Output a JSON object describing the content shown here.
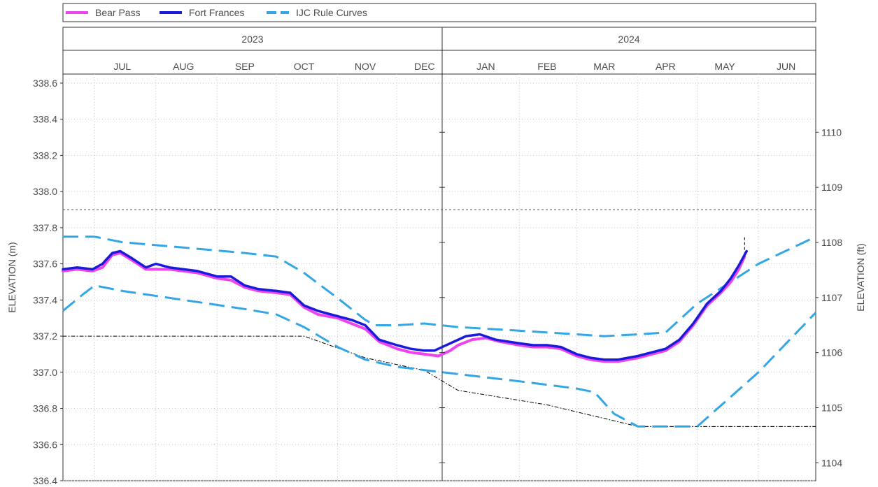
{
  "legend": {
    "items": [
      {
        "label": "Bear Pass",
        "color": "#ee44ee",
        "style": "solid"
      },
      {
        "label": "Fort Frances",
        "color": "#1a1adb",
        "style": "solid"
      },
      {
        "label": "IJC Rule Curves",
        "color": "#33a6e6",
        "style": "dashed"
      }
    ]
  },
  "panels": [
    {
      "year": "2023",
      "months": [
        "JUL",
        "AUG",
        "SEP",
        "OCT",
        "NOV",
        "DEC"
      ]
    },
    {
      "year": "2024",
      "months": [
        "JAN",
        "FEB",
        "MAR",
        "APR",
        "MAY",
        "JUN"
      ]
    }
  ],
  "axes": {
    "y_left_label": "ELEVATION (m)",
    "y_right_label": "ELEVATION (ft)",
    "y_left_ticks": [
      "336.4",
      "336.6",
      "336.8",
      "337.0",
      "337.2",
      "337.4",
      "337.6",
      "337.8",
      "338.0",
      "338.2",
      "338.4",
      "338.6"
    ],
    "y_right_ticks": [
      "1104",
      "1105",
      "1106",
      "1107",
      "1108",
      "1109",
      "1110"
    ]
  },
  "chart_data": {
    "type": "line",
    "x_unit": "date",
    "xlim": [
      "2023-06-15",
      "2024-06-30"
    ],
    "ylim": [
      336.4,
      338.65
    ],
    "y_left_unit": "m",
    "y_right_unit": "ft",
    "grid": true,
    "legend_position": "top",
    "series": [
      {
        "name": "Bear Pass",
        "color": "#ee44ee",
        "dash": false,
        "points": [
          [
            "2023-06-15",
            337.56
          ],
          [
            "2023-06-22",
            337.57
          ],
          [
            "2023-06-30",
            337.56
          ],
          [
            "2023-07-05",
            337.58
          ],
          [
            "2023-07-10",
            337.65
          ],
          [
            "2023-07-14",
            337.66
          ],
          [
            "2023-07-20",
            337.62
          ],
          [
            "2023-07-27",
            337.57
          ],
          [
            "2023-08-01",
            337.57
          ],
          [
            "2023-08-08",
            337.57
          ],
          [
            "2023-08-15",
            337.56
          ],
          [
            "2023-08-22",
            337.55
          ],
          [
            "2023-09-01",
            337.52
          ],
          [
            "2023-09-08",
            337.51
          ],
          [
            "2023-09-15",
            337.47
          ],
          [
            "2023-09-22",
            337.45
          ],
          [
            "2023-10-01",
            337.44
          ],
          [
            "2023-10-08",
            337.43
          ],
          [
            "2023-10-15",
            337.36
          ],
          [
            "2023-10-22",
            337.32
          ],
          [
            "2023-11-01",
            337.3
          ],
          [
            "2023-11-08",
            337.27
          ],
          [
            "2023-11-15",
            337.24
          ],
          [
            "2023-11-22",
            337.17
          ],
          [
            "2023-12-01",
            337.13
          ],
          [
            "2023-12-08",
            337.11
          ],
          [
            "2023-12-15",
            337.1
          ],
          [
            "2023-12-22",
            337.09
          ],
          [
            "2023-12-28",
            337.12
          ],
          [
            "2024-01-01",
            337.15
          ],
          [
            "2024-01-08",
            337.18
          ],
          [
            "2024-01-15",
            337.19
          ],
          [
            "2024-01-22",
            337.17
          ],
          [
            "2024-02-01",
            337.15
          ],
          [
            "2024-02-08",
            337.14
          ],
          [
            "2024-02-15",
            337.14
          ],
          [
            "2024-02-22",
            337.13
          ],
          [
            "2024-03-01",
            337.09
          ],
          [
            "2024-03-08",
            337.07
          ],
          [
            "2024-03-15",
            337.06
          ],
          [
            "2024-03-22",
            337.06
          ],
          [
            "2024-04-01",
            337.08
          ],
          [
            "2024-04-08",
            337.1
          ],
          [
            "2024-04-15",
            337.12
          ],
          [
            "2024-04-22",
            337.17
          ],
          [
            "2024-04-29",
            337.26
          ],
          [
            "2024-05-06",
            337.37
          ],
          [
            "2024-05-13",
            337.44
          ],
          [
            "2024-05-18",
            337.5
          ],
          [
            "2024-05-22",
            337.57
          ],
          [
            "2024-05-25",
            337.64
          ]
        ]
      },
      {
        "name": "Fort Frances",
        "color": "#1a1adb",
        "dash": false,
        "points": [
          [
            "2023-06-15",
            337.57
          ],
          [
            "2023-06-22",
            337.58
          ],
          [
            "2023-06-30",
            337.57
          ],
          [
            "2023-07-05",
            337.6
          ],
          [
            "2023-07-10",
            337.66
          ],
          [
            "2023-07-14",
            337.67
          ],
          [
            "2023-07-20",
            337.63
          ],
          [
            "2023-07-27",
            337.58
          ],
          [
            "2023-08-01",
            337.6
          ],
          [
            "2023-08-08",
            337.58
          ],
          [
            "2023-08-15",
            337.57
          ],
          [
            "2023-08-22",
            337.56
          ],
          [
            "2023-09-01",
            337.53
          ],
          [
            "2023-09-08",
            337.53
          ],
          [
            "2023-09-15",
            337.48
          ],
          [
            "2023-09-22",
            337.46
          ],
          [
            "2023-10-01",
            337.45
          ],
          [
            "2023-10-08",
            337.44
          ],
          [
            "2023-10-15",
            337.37
          ],
          [
            "2023-10-22",
            337.34
          ],
          [
            "2023-11-01",
            337.31
          ],
          [
            "2023-11-08",
            337.29
          ],
          [
            "2023-11-15",
            337.26
          ],
          [
            "2023-11-22",
            337.18
          ],
          [
            "2023-12-01",
            337.15
          ],
          [
            "2023-12-08",
            337.13
          ],
          [
            "2023-12-15",
            337.12
          ],
          [
            "2023-12-20",
            337.12
          ],
          [
            "2024-01-05",
            337.2
          ],
          [
            "2024-01-12",
            337.21
          ],
          [
            "2024-01-20",
            337.18
          ],
          [
            "2024-02-01",
            337.16
          ],
          [
            "2024-02-08",
            337.15
          ],
          [
            "2024-02-15",
            337.15
          ],
          [
            "2024-02-22",
            337.14
          ],
          [
            "2024-03-01",
            337.1
          ],
          [
            "2024-03-08",
            337.08
          ],
          [
            "2024-03-15",
            337.07
          ],
          [
            "2024-03-22",
            337.07
          ],
          [
            "2024-04-01",
            337.09
          ],
          [
            "2024-04-08",
            337.11
          ],
          [
            "2024-04-15",
            337.13
          ],
          [
            "2024-04-22",
            337.18
          ],
          [
            "2024-04-29",
            337.27
          ],
          [
            "2024-05-06",
            337.38
          ],
          [
            "2024-05-13",
            337.45
          ],
          [
            "2024-05-18",
            337.52
          ],
          [
            "2024-05-22",
            337.59
          ],
          [
            "2024-05-26",
            337.67
          ]
        ]
      },
      {
        "name": "IJC Rule Curves",
        "color": "#33a6e6",
        "dash": true,
        "points": [
          [
            "2023-06-15",
            337.75
          ],
          [
            "2023-07-01",
            337.75
          ],
          [
            "2023-07-15",
            337.72
          ],
          [
            "2023-08-15",
            337.69
          ],
          [
            "2023-09-15",
            337.66
          ],
          [
            "2023-10-01",
            337.64
          ],
          [
            "2023-10-15",
            337.55
          ],
          [
            "2023-11-01",
            337.41
          ],
          [
            "2023-11-15",
            337.29
          ],
          [
            "2023-11-20",
            337.26
          ],
          [
            "2023-12-01",
            337.26
          ],
          [
            "2023-12-15",
            337.27
          ],
          [
            "2024-01-01",
            337.25
          ],
          [
            "2024-02-01",
            337.23
          ],
          [
            "2024-03-01",
            337.21
          ],
          [
            "2024-03-15",
            337.2
          ],
          [
            "2024-04-01",
            337.21
          ],
          [
            "2024-04-15",
            337.22
          ],
          [
            "2024-05-01",
            337.38
          ],
          [
            "2024-06-01",
            337.6
          ],
          [
            "2024-06-30",
            337.75
          ]
        ]
      },
      {
        "name": "IJC Rule Curves",
        "color": "#33a6e6",
        "dash": true,
        "points": [
          [
            "2023-06-15",
            337.34
          ],
          [
            "2023-06-25",
            337.43
          ],
          [
            "2023-07-01",
            337.48
          ],
          [
            "2023-07-15",
            337.45
          ],
          [
            "2023-08-15",
            337.4
          ],
          [
            "2023-09-15",
            337.35
          ],
          [
            "2023-10-01",
            337.32
          ],
          [
            "2023-10-15",
            337.25
          ],
          [
            "2023-11-01",
            337.14
          ],
          [
            "2023-11-15",
            337.07
          ],
          [
            "2023-12-01",
            337.03
          ],
          [
            "2024-01-01",
            336.99
          ],
          [
            "2024-02-01",
            336.95
          ],
          [
            "2024-03-01",
            336.91
          ],
          [
            "2024-03-10",
            336.89
          ],
          [
            "2024-03-20",
            336.77
          ],
          [
            "2024-04-01",
            336.7
          ],
          [
            "2024-05-01",
            336.7
          ],
          [
            "2024-06-01",
            337.0
          ],
          [
            "2024-06-30",
            337.33
          ]
        ]
      },
      {
        "name": "",
        "color": "#000000",
        "dash": "dashdot",
        "points": [
          [
            "2023-06-15",
            337.2
          ],
          [
            "2023-10-15",
            337.2
          ],
          [
            "2023-11-15",
            337.08
          ],
          [
            "2023-12-15",
            337.01
          ],
          [
            "2024-01-01",
            336.9
          ],
          [
            "2024-02-15",
            336.82
          ],
          [
            "2024-04-01",
            336.7
          ],
          [
            "2024-06-30",
            336.7
          ]
        ]
      }
    ],
    "reference_lines": [
      {
        "y": 337.9,
        "style": "dashed",
        "color": "#555555"
      }
    ],
    "annotation_marks": [
      {
        "x": "2024-05-25",
        "y_from": 337.65,
        "y_to": 337.75,
        "style": "dashed",
        "color": "#000000"
      }
    ]
  }
}
